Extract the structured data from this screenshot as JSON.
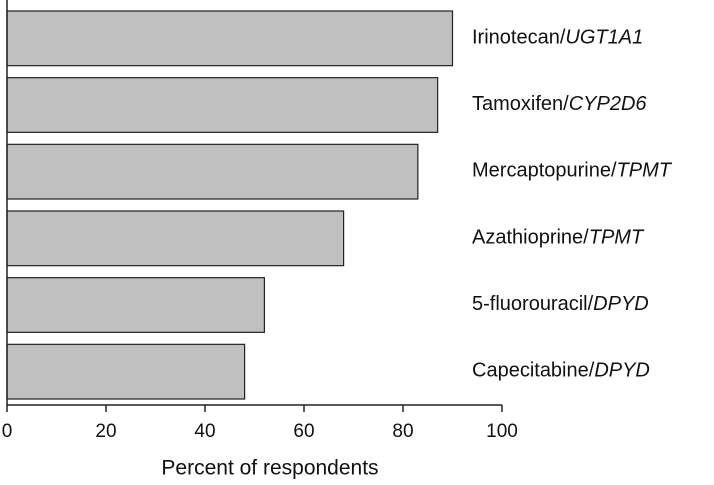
{
  "chart_data": {
    "type": "bar",
    "orientation": "horizontal",
    "categories": [
      "Irinotecan/UGT1A1",
      "Tamoxifen/CYP2D6",
      "Mercaptopurine/TPMT",
      "Azathioprine/TPMT",
      "5-fluorouracil/DPYD",
      "Capecitabine/DPYD"
    ],
    "values": [
      90,
      87,
      83,
      68,
      52,
      48
    ],
    "color": "#c0c0c0",
    "xlim": [
      0,
      100
    ],
    "xticks": [
      0,
      20,
      40,
      60,
      80,
      100
    ],
    "xlabel": "Percent of respondents",
    "grid": false
  }
}
